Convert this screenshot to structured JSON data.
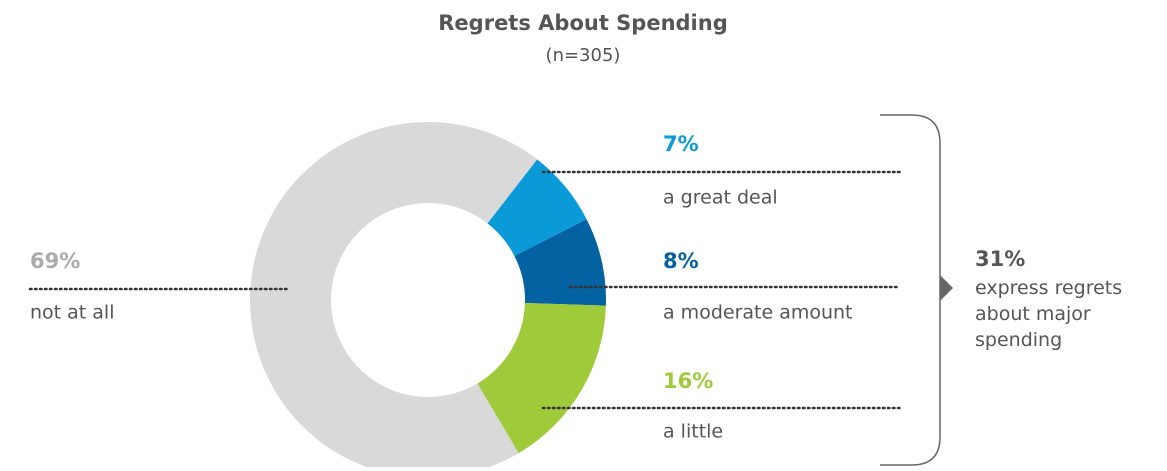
{
  "chart_data": {
    "type": "donut",
    "title": "Regrets About Spending",
    "subtitle": "(n=305)",
    "categories": [
      "a great deal",
      "a moderate amount",
      "a little",
      "not at all"
    ],
    "values": [
      7,
      8,
      16,
      69
    ],
    "value_labels": [
      "7%",
      "8%",
      "16%",
      "69%"
    ],
    "colors": [
      "#0a9ad8",
      "#0562a2",
      "#9fcb3b",
      "#d9d9d9"
    ],
    "label_colors": [
      "#0a9ad8",
      "#0562a2",
      "#9fcb3b",
      "#ababab"
    ],
    "annotation": {
      "label": "31%",
      "text": "express regrets about major spending"
    }
  }
}
